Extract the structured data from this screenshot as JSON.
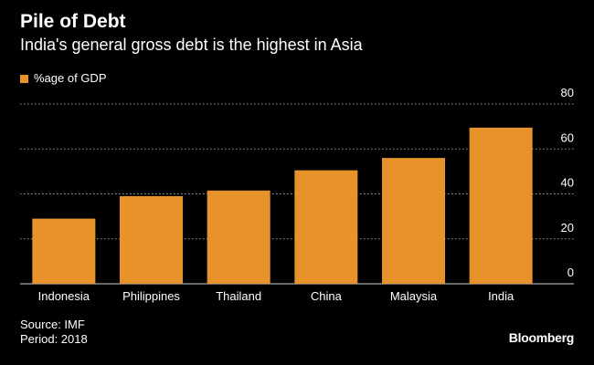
{
  "title": "Pile of Debt",
  "subtitle": "India's general gross debt is the highest in Asia",
  "legend_label": "%age of GDP",
  "source": "Source: IMF",
  "period": "Period: 2018",
  "brand": "Bloomberg",
  "colors": {
    "background": "#000000",
    "bar": "#e8922b",
    "text": "#ffffff",
    "grid": "#9a9a9a"
  },
  "chart_data": {
    "type": "bar",
    "categories": [
      "Indonesia",
      "Philippines",
      "Thailand",
      "China",
      "Malaysia",
      "India"
    ],
    "series": [
      {
        "name": "%age of GDP",
        "values": [
          29,
          39,
          41.5,
          50.5,
          56,
          69.5
        ]
      }
    ],
    "ylim": [
      0,
      80
    ],
    "yticks": [
      0,
      20,
      40,
      60,
      80
    ],
    "ytick_labels": [
      "0",
      "20",
      "40",
      "60",
      "80"
    ],
    "y_axis_side": "right",
    "grid": true,
    "legend_position": "top-left"
  }
}
